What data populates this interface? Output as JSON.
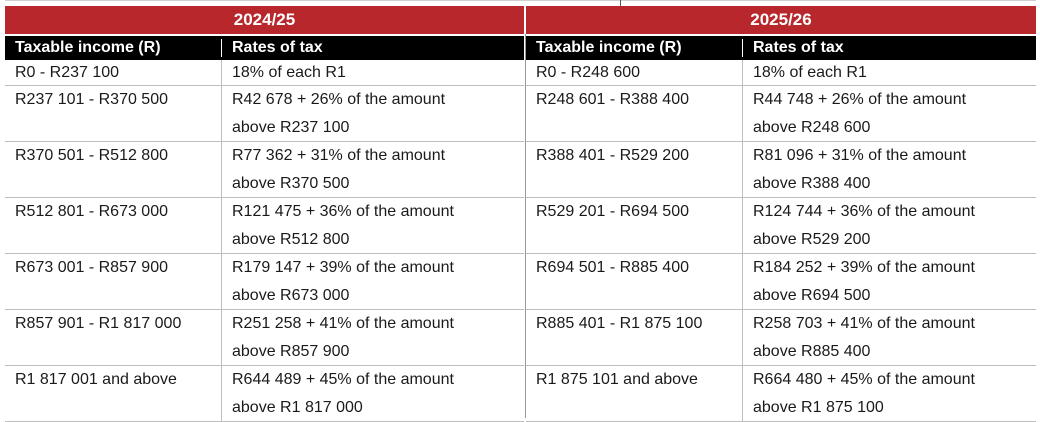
{
  "tables": [
    {
      "year": "2024/25",
      "headers": {
        "income": "Taxable income (R)",
        "rates": "Rates of tax"
      },
      "rows": [
        {
          "income": "R0 - R237 100",
          "rate_line1": "18% of each R1",
          "rate_line2": ""
        },
        {
          "income": "R237 101 - R370 500",
          "rate_line1": "R42 678 + 26% of the amount",
          "rate_line2": "above R237 100"
        },
        {
          "income": "R370 501 - R512 800",
          "rate_line1": "R77 362 + 31% of the amount",
          "rate_line2": "above R370 500"
        },
        {
          "income": "R512 801 - R673 000",
          "rate_line1": "R121 475 + 36% of the amount",
          "rate_line2": "above R512 800"
        },
        {
          "income": "R673 001 - R857 900",
          "rate_line1": "R179 147 + 39% of the amount",
          "rate_line2": "above R673 000"
        },
        {
          "income": "R857 901 - R1 817 000",
          "rate_line1": "R251 258 + 41% of the amount",
          "rate_line2": "above R857 900"
        },
        {
          "income": "R1 817 001 and above",
          "rate_line1": "R644 489 + 45% of the amount",
          "rate_line2": "above R1 817 000"
        }
      ]
    },
    {
      "year": "2025/26",
      "headers": {
        "income": "Taxable income (R)",
        "rates": "Rates of tax"
      },
      "rows": [
        {
          "income": "R0 - R248 600",
          "rate_line1": "18% of each R1",
          "rate_line2": ""
        },
        {
          "income": "R248 601 - R388 400",
          "rate_line1": "R44 748 + 26% of the amount",
          "rate_line2": "above R248 600"
        },
        {
          "income": "R388 401 - R529 200",
          "rate_line1": "R81 096 + 31% of the amount",
          "rate_line2": "above R388 400"
        },
        {
          "income": "R529 201 - R694 500",
          "rate_line1": "R124 744 + 36% of the amount",
          "rate_line2": "above R529 200"
        },
        {
          "income": "R694 501 - R885 400",
          "rate_line1": "R184 252 + 39% of the amount",
          "rate_line2": "above R694 500"
        },
        {
          "income": "R885 401 - R1 875 100",
          "rate_line1": "R258 703 + 41% of the amount",
          "rate_line2": "above R885 400"
        },
        {
          "income": "R1 875 101 and above",
          "rate_line1": "R664 480 + 45% of the amount",
          "rate_line2": "above R1 875 100"
        }
      ]
    }
  ],
  "colors": {
    "year_band": "#b8272b",
    "header_band": "#000000"
  }
}
